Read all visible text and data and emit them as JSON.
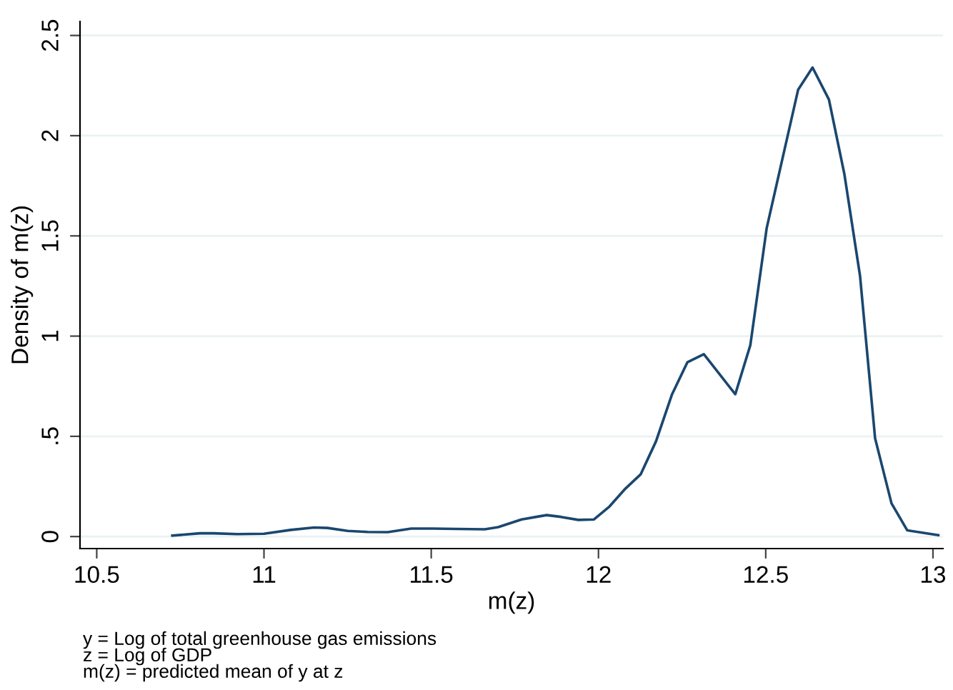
{
  "chart_data": {
    "type": "line",
    "xlabel": "m(z)",
    "ylabel": "Density of m(z)",
    "x": [
      10.726,
      10.808,
      10.85,
      10.92,
      11.0,
      11.08,
      11.15,
      11.19,
      11.25,
      11.31,
      11.37,
      11.44,
      11.505,
      11.575,
      11.66,
      11.7,
      11.77,
      11.82,
      11.845,
      11.888,
      11.94,
      11.986,
      12.033,
      12.081,
      12.126,
      12.172,
      12.22,
      12.266,
      12.315,
      12.409,
      12.454,
      12.503,
      12.548,
      12.597,
      12.64,
      12.689,
      12.735,
      12.782,
      12.827,
      12.876,
      12.923,
      13.016
    ],
    "series": [
      {
        "color": "#1a476f",
        "values": [
          0.005,
          0.016,
          0.016,
          0.012,
          0.014,
          0.033,
          0.045,
          0.043,
          0.028,
          0.023,
          0.022,
          0.04,
          0.04,
          0.038,
          0.036,
          0.047,
          0.085,
          0.1,
          0.107,
          0.098,
          0.083,
          0.085,
          0.15,
          0.24,
          0.31,
          0.475,
          0.71,
          0.87,
          0.91,
          0.71,
          0.955,
          1.54,
          1.87,
          2.23,
          2.34,
          2.18,
          1.81,
          1.3,
          0.49,
          0.166,
          0.031,
          0.007
        ]
      }
    ],
    "xlim": [
      10.45,
      13.03
    ],
    "xticks": [
      10.5,
      11,
      11.5,
      12,
      12.5,
      13
    ],
    "ylim": [
      -0.06,
      2.57
    ],
    "yticks": [
      0,
      {
        "value": 0.5,
        "label": ".5"
      },
      1,
      1.5,
      2,
      2.5
    ],
    "grid": "y",
    "legend": false,
    "annotations": [
      "y = Log of total greenhouse gas emissions",
      "z = Log of GDP",
      "m(z) = predicted mean of y at z"
    ]
  }
}
